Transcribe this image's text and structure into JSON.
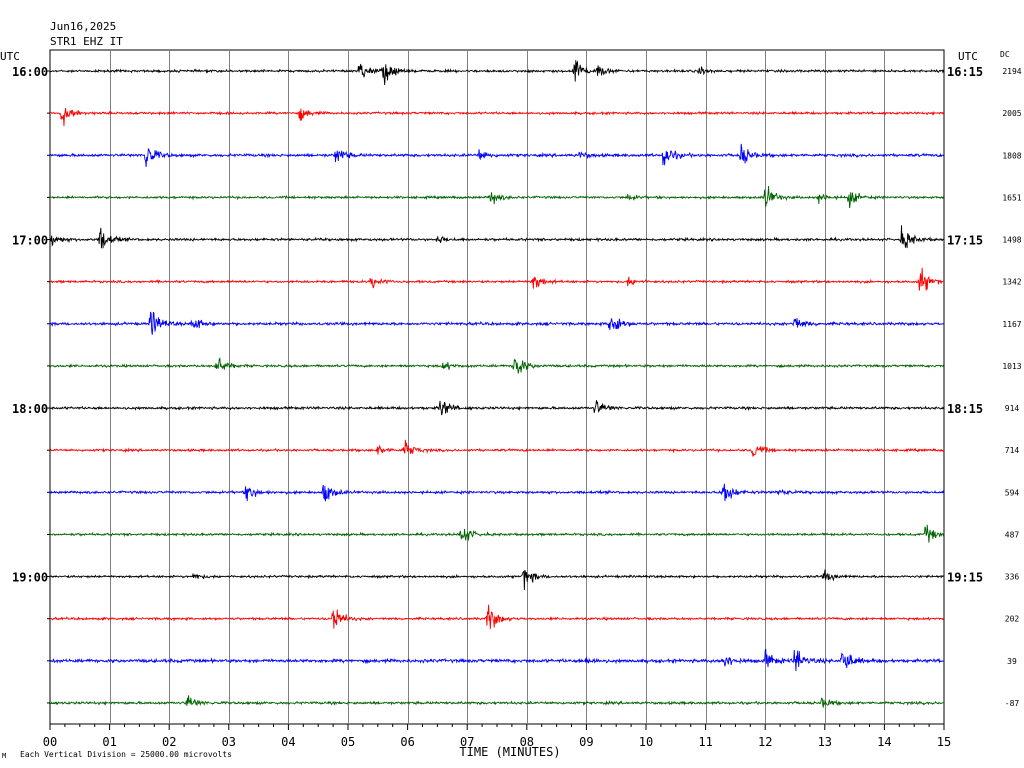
{
  "header": {
    "date": "Jun16,2025",
    "station": "STR1 EHZ IT",
    "left_tz": "UTC",
    "right_tz": "UTC",
    "dc_label": "DC"
  },
  "footer": {
    "scale_note": "Each Vertical Division = 25000.00 microvolts"
  },
  "chart_data": {
    "type": "line",
    "xlabel": "TIME (MINUTES)",
    "xlim": [
      0,
      15
    ],
    "x_ticks": [
      "00",
      "01",
      "02",
      "03",
      "04",
      "05",
      "06",
      "07",
      "08",
      "09",
      "10",
      "11",
      "12",
      "13",
      "14",
      "15"
    ],
    "trace_colors": [
      "#000000",
      "#ff0000",
      "#0000ff",
      "#006400"
    ],
    "left_time_labels": [
      {
        "trace": 0,
        "label": "16:00"
      },
      {
        "trace": 4,
        "label": "17:00"
      },
      {
        "trace": 8,
        "label": "18:00"
      },
      {
        "trace": 12,
        "label": "19:00"
      }
    ],
    "right_time_labels": [
      {
        "trace": 0,
        "label": "16:15"
      },
      {
        "trace": 4,
        "label": "17:15"
      },
      {
        "trace": 8,
        "label": "18:15"
      },
      {
        "trace": 12,
        "label": "19:15"
      }
    ],
    "dc_offsets": [
      "2194",
      "2005",
      "1808",
      "1651",
      "1498",
      "1342",
      "1167",
      "1013",
      "914",
      "714",
      "594",
      "487",
      "336",
      "202",
      "39",
      "-87"
    ],
    "traces": [
      {
        "noise": 0.9,
        "events": [
          {
            "t": 5.2,
            "a": 9
          },
          {
            "t": 5.6,
            "a": 13
          },
          {
            "t": 8.8,
            "a": 14
          },
          {
            "t": 9.2,
            "a": 5
          },
          {
            "t": 10.9,
            "a": 3
          }
        ]
      },
      {
        "noise": 0.9,
        "events": [
          {
            "t": 0.2,
            "a": 13
          },
          {
            "t": 4.2,
            "a": 6
          }
        ]
      },
      {
        "noise": 1.1,
        "events": [
          {
            "t": 1.6,
            "a": 14
          },
          {
            "t": 4.8,
            "a": 8
          },
          {
            "t": 7.2,
            "a": 5
          },
          {
            "t": 8.9,
            "a": 3
          },
          {
            "t": 10.3,
            "a": 12
          },
          {
            "t": 11.6,
            "a": 10
          }
        ]
      },
      {
        "noise": 0.9,
        "events": [
          {
            "t": 7.4,
            "a": 7
          },
          {
            "t": 9.7,
            "a": 3
          },
          {
            "t": 12.0,
            "a": 12
          },
          {
            "t": 12.9,
            "a": 4
          },
          {
            "t": 13.4,
            "a": 8
          }
        ]
      },
      {
        "noise": 1.0,
        "events": [
          {
            "t": 0.0,
            "a": 7
          },
          {
            "t": 0.85,
            "a": 12
          },
          {
            "t": 6.5,
            "a": 3
          },
          {
            "t": 14.3,
            "a": 12
          }
        ]
      },
      {
        "noise": 0.9,
        "events": [
          {
            "t": 5.4,
            "a": 6
          },
          {
            "t": 8.1,
            "a": 9
          },
          {
            "t": 9.7,
            "a": 4
          },
          {
            "t": 14.6,
            "a": 14
          }
        ]
      },
      {
        "noise": 1.1,
        "events": [
          {
            "t": 1.7,
            "a": 14
          },
          {
            "t": 2.4,
            "a": 7
          },
          {
            "t": 9.4,
            "a": 14
          },
          {
            "t": 12.5,
            "a": 7
          }
        ]
      },
      {
        "noise": 0.9,
        "events": [
          {
            "t": 2.8,
            "a": 10
          },
          {
            "t": 6.6,
            "a": 4
          },
          {
            "t": 7.8,
            "a": 14
          }
        ]
      },
      {
        "noise": 1.0,
        "events": [
          {
            "t": 6.55,
            "a": 10
          },
          {
            "t": 9.15,
            "a": 8
          }
        ]
      },
      {
        "noise": 0.9,
        "events": [
          {
            "t": 5.5,
            "a": 4
          },
          {
            "t": 5.95,
            "a": 9
          },
          {
            "t": 11.8,
            "a": 8
          }
        ]
      },
      {
        "noise": 1.0,
        "events": [
          {
            "t": 3.3,
            "a": 8
          },
          {
            "t": 4.6,
            "a": 10
          },
          {
            "t": 11.3,
            "a": 13
          },
          {
            "t": 12.2,
            "a": 3
          }
        ]
      },
      {
        "noise": 0.9,
        "events": [
          {
            "t": 6.9,
            "a": 10
          },
          {
            "t": 14.7,
            "a": 9
          }
        ]
      },
      {
        "noise": 0.9,
        "events": [
          {
            "t": 2.4,
            "a": 3
          },
          {
            "t": 7.95,
            "a": 10
          },
          {
            "t": 13.0,
            "a": 5
          }
        ]
      },
      {
        "noise": 0.9,
        "events": [
          {
            "t": 4.75,
            "a": 14
          },
          {
            "t": 7.35,
            "a": 14
          }
        ]
      },
      {
        "noise": 1.3,
        "events": [
          {
            "t": 9.0,
            "a": 3
          },
          {
            "t": 11.3,
            "a": 7
          },
          {
            "t": 12.0,
            "a": 8
          },
          {
            "t": 12.5,
            "a": 12
          },
          {
            "t": 13.3,
            "a": 14
          }
        ]
      },
      {
        "noise": 1.0,
        "events": [
          {
            "t": 2.3,
            "a": 7
          },
          {
            "t": 12.95,
            "a": 4
          }
        ]
      }
    ]
  }
}
